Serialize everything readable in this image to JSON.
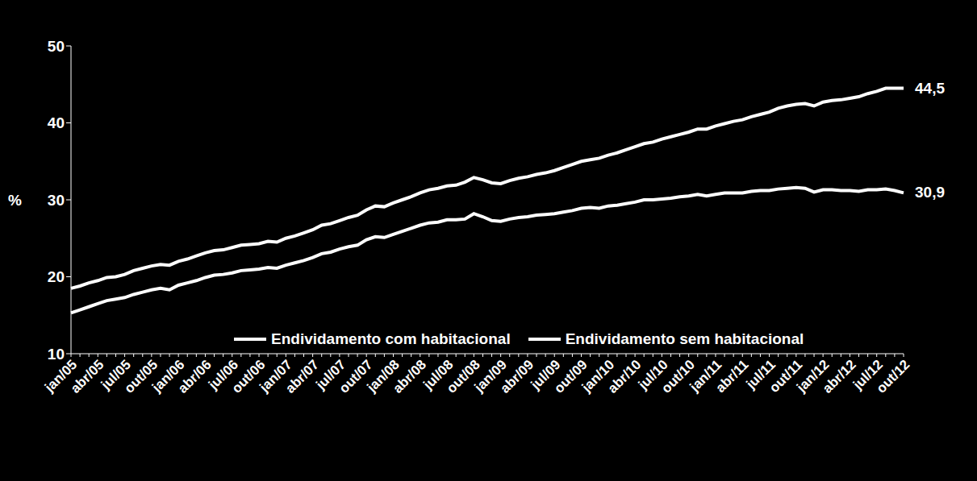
{
  "chart_data": {
    "type": "line",
    "y_label": "%",
    "categories": [
      "jan/05",
      null,
      null,
      "abr/05",
      null,
      null,
      "jul/05",
      null,
      null,
      "out/05",
      null,
      null,
      "jan/06",
      null,
      null,
      "abr/06",
      null,
      null,
      "jul/06",
      null,
      null,
      "out/06",
      null,
      null,
      "jan/07",
      null,
      null,
      "abr/07",
      null,
      null,
      "jul/07",
      null,
      null,
      "out/07",
      null,
      null,
      "jan/08",
      null,
      null,
      "abr/08",
      null,
      null,
      "jul/08",
      null,
      null,
      "out/08",
      null,
      null,
      "jan/09",
      null,
      null,
      "abr/09",
      null,
      null,
      "jul/09",
      null,
      null,
      "out/09",
      null,
      null,
      "jan/10",
      null,
      null,
      "abr/10",
      null,
      null,
      "jul/10",
      null,
      null,
      "out/10",
      null,
      null,
      "jan/11",
      null,
      null,
      "abr/11",
      null,
      null,
      "jul/11",
      null,
      null,
      "out/11",
      null,
      null,
      "jan/12",
      null,
      null,
      "abr/12",
      null,
      null,
      "jul/12",
      null,
      null,
      "out/12"
    ],
    "series": [
      {
        "name": "Endividamento com habitacional",
        "color": "#ffffff",
        "values": [
          18.5,
          18.8,
          19.2,
          19.5,
          19.9,
          20.0,
          20.3,
          20.8,
          21.1,
          21.4,
          21.6,
          21.5,
          22.0,
          22.3,
          22.7,
          23.1,
          23.4,
          23.5,
          23.8,
          24.1,
          24.2,
          24.3,
          24.6,
          24.5,
          25.0,
          25.3,
          25.7,
          26.1,
          26.7,
          26.9,
          27.3,
          27.7,
          28.0,
          28.7,
          29.2,
          29.1,
          29.6,
          30.0,
          30.4,
          30.9,
          31.3,
          31.5,
          31.8,
          31.9,
          32.3,
          32.9,
          32.6,
          32.2,
          32.1,
          32.5,
          32.8,
          33.0,
          33.3,
          33.5,
          33.8,
          34.2,
          34.6,
          35.0,
          35.2,
          35.4,
          35.8,
          36.1,
          36.5,
          36.9,
          37.3,
          37.5,
          37.9,
          38.2,
          38.5,
          38.8,
          39.2,
          39.2,
          39.6,
          39.9,
          40.2,
          40.4,
          40.8,
          41.1,
          41.4,
          41.9,
          42.2,
          42.4,
          42.5,
          42.2,
          42.7,
          42.9,
          43.0,
          43.2,
          43.4,
          43.8,
          44.1,
          44.5,
          44.5,
          44.5
        ],
        "end_label": "44,5"
      },
      {
        "name": "Endividamento sem habitacional",
        "color": "#ffffff",
        "values": [
          15.3,
          15.7,
          16.1,
          16.5,
          16.9,
          17.1,
          17.3,
          17.7,
          18.0,
          18.3,
          18.5,
          18.3,
          18.9,
          19.2,
          19.5,
          19.9,
          20.2,
          20.3,
          20.5,
          20.8,
          20.9,
          21.0,
          21.2,
          21.1,
          21.5,
          21.8,
          22.1,
          22.5,
          23.0,
          23.2,
          23.6,
          23.9,
          24.1,
          24.8,
          25.2,
          25.1,
          25.5,
          25.9,
          26.3,
          26.7,
          27.0,
          27.1,
          27.4,
          27.4,
          27.5,
          28.2,
          27.8,
          27.3,
          27.2,
          27.5,
          27.7,
          27.8,
          28.0,
          28.1,
          28.2,
          28.4,
          28.6,
          28.9,
          29.0,
          28.9,
          29.2,
          29.3,
          29.5,
          29.7,
          30.0,
          30.0,
          30.1,
          30.2,
          30.4,
          30.5,
          30.7,
          30.5,
          30.7,
          30.9,
          30.9,
          30.9,
          31.1,
          31.2,
          31.2,
          31.4,
          31.5,
          31.6,
          31.5,
          31.0,
          31.3,
          31.3,
          31.2,
          31.2,
          31.1,
          31.3,
          31.3,
          31.4,
          31.2,
          30.9
        ],
        "end_label": "30,9"
      }
    ],
    "ylim": [
      10,
      50
    ],
    "yticks": [
      10,
      20,
      30,
      40,
      50
    ],
    "grid": false,
    "legend": "bottom"
  }
}
